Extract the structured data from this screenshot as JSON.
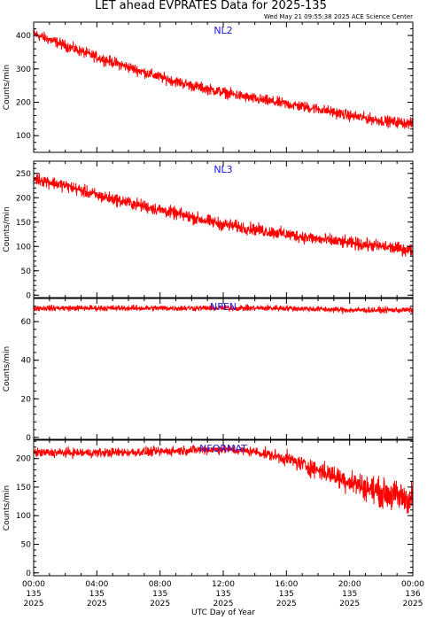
{
  "title": "LET ahead EVPRATES Data for 2025-135",
  "timestamp": "Wed May 21 09:55:38 2025 ACE Science Center",
  "xlabel": "UTC Day of Year",
  "x_ticks": [
    {
      "time": "00:00",
      "day": "135",
      "year": "2025"
    },
    {
      "time": "04:00",
      "day": "135",
      "year": "2025"
    },
    {
      "time": "08:00",
      "day": "135",
      "year": "2025"
    },
    {
      "time": "12:00",
      "day": "135",
      "year": "2025"
    },
    {
      "time": "16:00",
      "day": "135",
      "year": "2025"
    },
    {
      "time": "20:00",
      "day": "135",
      "year": "2025"
    },
    {
      "time": "00:00",
      "day": "136",
      "year": "2025"
    }
  ],
  "colors": {
    "trace": "#ff0000",
    "label": "#1a1adf",
    "axis": "#000000"
  },
  "chart_data": [
    {
      "type": "line",
      "name": "NL2",
      "ylabel": "Counts/min",
      "xlim_hours": [
        0,
        24
      ],
      "ylim": [
        50,
        440
      ],
      "yticks": [
        100,
        200,
        300,
        400
      ],
      "x_hours": [
        0,
        2,
        4,
        6,
        8,
        10,
        12,
        14,
        16,
        18,
        20,
        22,
        24
      ],
      "values": [
        405,
        370,
        335,
        305,
        275,
        250,
        230,
        210,
        195,
        180,
        160,
        145,
        135
      ],
      "noise": 14
    },
    {
      "type": "line",
      "name": "NL3",
      "ylabel": "Counts/min",
      "xlim_hours": [
        0,
        24
      ],
      "ylim": [
        -5,
        275
      ],
      "yticks": [
        0,
        50,
        100,
        150,
        200,
        250
      ],
      "x_hours": [
        0,
        2,
        4,
        6,
        8,
        10,
        12,
        14,
        16,
        18,
        20,
        22,
        24
      ],
      "values": [
        240,
        225,
        205,
        190,
        175,
        160,
        145,
        135,
        125,
        115,
        107,
        100,
        92
      ],
      "noise": 11
    },
    {
      "type": "line",
      "name": "NPEN",
      "ylabel": "Counts/min",
      "xlim_hours": [
        0,
        24
      ],
      "ylim": [
        -1,
        72
      ],
      "yticks": [
        0,
        20,
        40,
        60
      ],
      "x_hours": [
        0,
        4,
        8,
        12,
        16,
        20,
        24
      ],
      "values": [
        67,
        67,
        67,
        67,
        67,
        66,
        66
      ],
      "noise": 1.3
    },
    {
      "type": "line",
      "name": "NFORMAT",
      "ylabel": "Counts/min",
      "xlim_hours": [
        0,
        24
      ],
      "ylim": [
        -5,
        232
      ],
      "yticks": [
        0,
        50,
        100,
        150,
        200
      ],
      "x_hours": [
        0,
        4,
        8,
        10,
        12,
        14,
        16,
        18,
        20,
        22,
        24
      ],
      "values": [
        210,
        210,
        212,
        215,
        216,
        212,
        200,
        180,
        160,
        140,
        128
      ],
      "noise": 7
    }
  ]
}
